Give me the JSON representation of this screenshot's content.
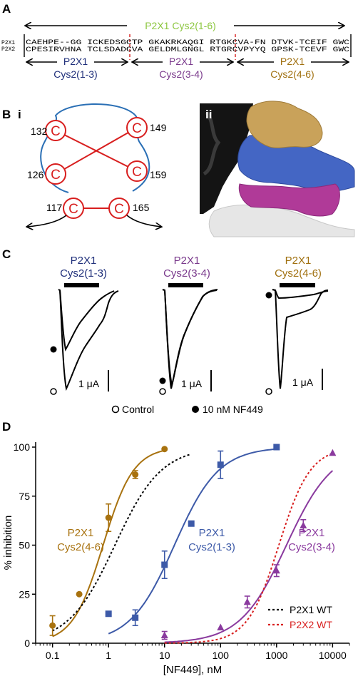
{
  "panel_labels": {
    "a": "A",
    "b": "B",
    "b_i": "i",
    "b_ii": "ii",
    "c": "C",
    "d": "D"
  },
  "panel_a": {
    "top_label": "P2X1 Cys2(1-6)",
    "seq_name_1": "P2X1",
    "seq_name_2": "P2X2",
    "seq_1": "CAEHPE--GG ICKEDSGCTP GKAKRKAQGI RTGKCVA-FN DTVK-TCEIF GWC",
    "seq_2": "CPESIRVHNA TCLSDADCVA GELDMLGNGL RTGRCVPYYQ GPSK-TCEVF GWC",
    "seg1_name": "P2X1",
    "seg1_sub": "Cys2(1-3)",
    "seg2_name": "P2X1",
    "seg2_sub": "Cys2(3-4)",
    "seg3_name": "P2X1",
    "seg3_sub": "Cys2(4-6)"
  },
  "panel_bi": {
    "cys_letter": "C",
    "n132": "132",
    "n149": "149",
    "n126": "126",
    "n159": "159",
    "n117": "117",
    "n165": "165"
  },
  "panel_c": {
    "t1_name": "P2X1",
    "t1_sub": "Cys2(1-3)",
    "t2_name": "P2X1",
    "t2_sub": "Cys2(3-4)",
    "t3_name": "P2X1",
    "t3_sub": "Cys2(4-6)",
    "scale": "1 μA",
    "legend_control": "Control",
    "legend_nf": "10 nM NF449"
  },
  "colors": {
    "green": "#8cc63f",
    "navy": "#1f2f7a",
    "purple": "#7a3a8c",
    "gold": "#a0700f",
    "blue": "#3d5aa8",
    "violet": "#8a3a9e",
    "brown": "#a8720f",
    "red": "#d81e1e",
    "tan": "#c9a25a",
    "magenta": "#b03a98",
    "surface_blue": "#4466c4"
  },
  "chart_data": {
    "type": "scatter",
    "xlabel": "[NF449], nM",
    "ylabel": "% inhibition",
    "xscale": "log",
    "xlim": [
      0.05,
      20000
    ],
    "ylim": [
      0,
      100
    ],
    "x_ticks": [
      {
        "v": 0.1,
        "label": "0.1"
      },
      {
        "v": 1,
        "label": "1"
      },
      {
        "v": 10,
        "label": "10"
      },
      {
        "v": 100,
        "label": "100"
      },
      {
        "v": 1000,
        "label": "1000"
      },
      {
        "v": 10000,
        "label": "10000"
      }
    ],
    "y_ticks": [
      0,
      25,
      50,
      75,
      100
    ],
    "series": [
      {
        "label": "P2X1\nCys2(4-6)",
        "label_line1": "P2X1",
        "label_line2": "Cys2(4-6)",
        "color": "#a8720f",
        "marker": "circle",
        "x": [
          0.1,
          0.3,
          1,
          3,
          10
        ],
        "y": [
          9,
          25,
          64,
          86,
          99
        ],
        "err": [
          5,
          0,
          7,
          2,
          0
        ],
        "curve": {
          "ec50": 0.8,
          "hill": 1.6,
          "xmin": 0.1,
          "xmax": 10
        }
      },
      {
        "label": "P2X1\nCys2(1-3)",
        "label_line1": "P2X1",
        "label_line2": "Cys2(1-3)",
        "color": "#3d5aa8",
        "marker": "square",
        "x": [
          1,
          3,
          10,
          30,
          100,
          1000
        ],
        "y": [
          15,
          13,
          40,
          61,
          91,
          100
        ],
        "err": [
          0,
          4,
          7,
          0,
          7,
          0
        ],
        "curve": {
          "ec50": 15,
          "hill": 1.1,
          "xmin": 1,
          "xmax": 1000
        }
      },
      {
        "label": "P2X1\nCys2(3-4)",
        "label_line1": "P2X1",
        "label_line2": "Cys2(3-4)",
        "color": "#8a3a9e",
        "marker": "triangle",
        "x": [
          10,
          100,
          300,
          1000,
          3000,
          10000
        ],
        "y": [
          4,
          8,
          21,
          37,
          60,
          97
        ],
        "err": [
          2,
          0,
          3,
          3,
          3,
          0
        ],
        "curve": {
          "ec50": 1500,
          "hill": 1.05,
          "xmin": 10,
          "xmax": 10000
        }
      },
      {
        "name": "P2X1 WT",
        "color": "#000000",
        "dashed": true,
        "curve": {
          "ec50": 1.3,
          "hill": 1.05,
          "xmin": 0.1,
          "xmax": 30
        }
      },
      {
        "name": "P2X2 WT",
        "color": "#d81e1e",
        "dashed": true,
        "curve": {
          "ec50": 1100,
          "hill": 1.55,
          "xmin": 10,
          "xmax": 10000
        }
      }
    ],
    "legend_position": "bottom-right"
  }
}
